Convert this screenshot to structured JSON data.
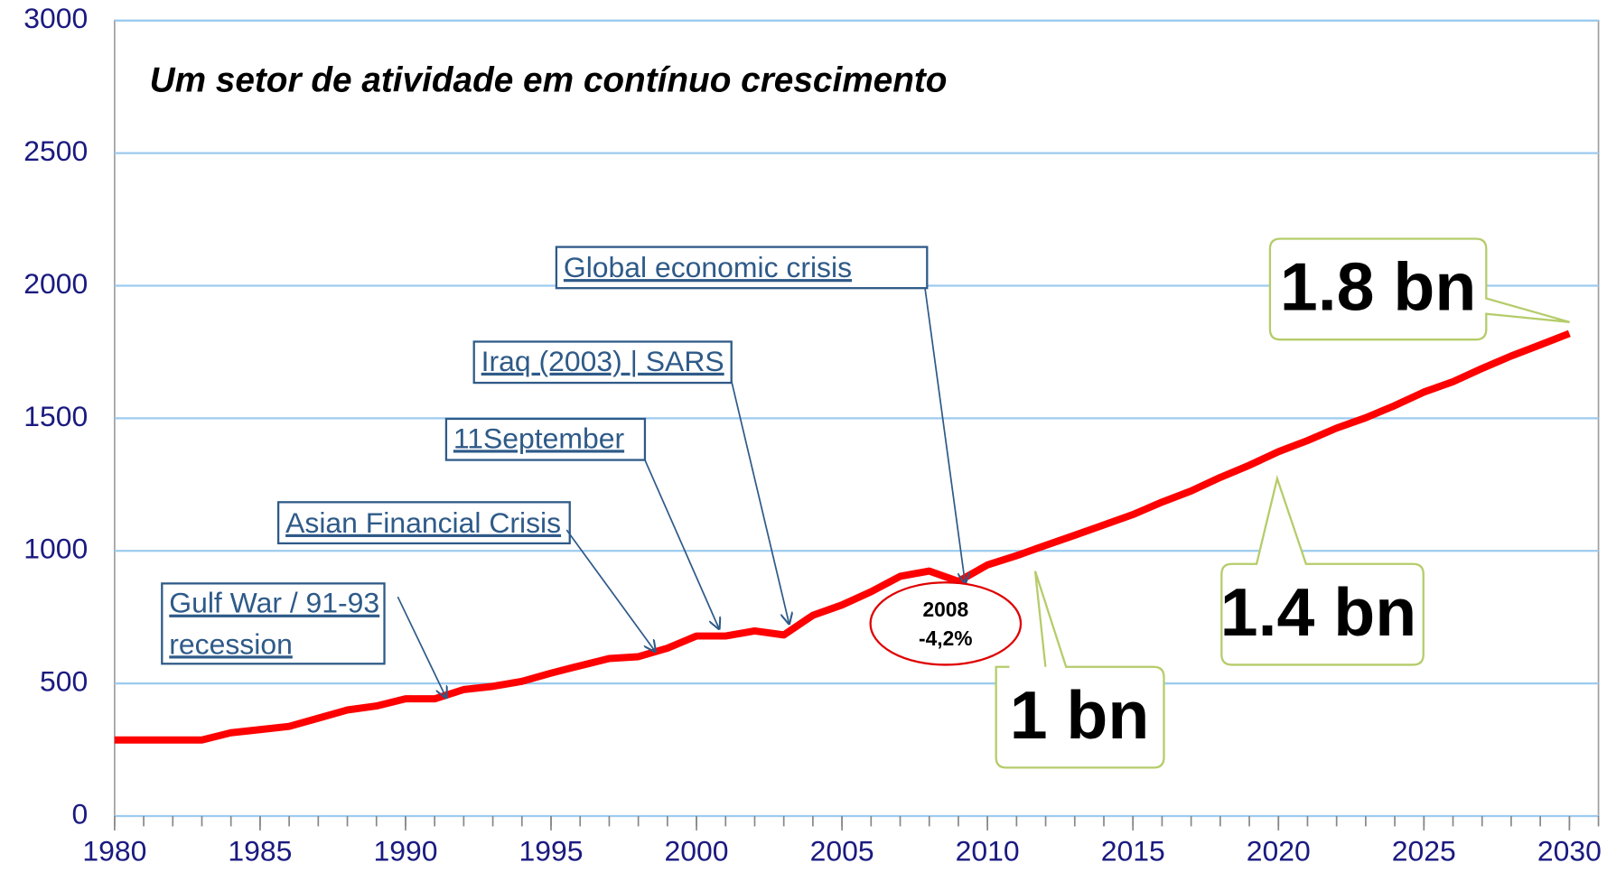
{
  "chart_data": {
    "type": "line",
    "title": "Um setor de atividade em contínuo crescimento",
    "x": [
      1980,
      1981,
      1982,
      1983,
      1984,
      1985,
      1986,
      1987,
      1988,
      1989,
      1990,
      1991,
      1992,
      1993,
      1994,
      1995,
      1996,
      1997,
      1998,
      1999,
      2000,
      2001,
      2002,
      2003,
      2004,
      2005,
      2006,
      2007,
      2008,
      2009,
      2010,
      2011,
      2012,
      2013,
      2014,
      2015,
      2016,
      2017,
      2018,
      2019,
      2020,
      2021,
      2022,
      2023,
      2024,
      2025,
      2026,
      2027,
      2028,
      2029,
      2030
    ],
    "series": [
      {
        "color": "#ff0000",
        "values": [
          287,
          287,
          287,
          287,
          314,
          326,
          338,
          369,
          400,
          415,
          442,
          442,
          477,
          489,
          508,
          539,
          567,
          594,
          601,
          633,
          679,
          679,
          698,
          683,
          757,
          796,
          846,
          904,
          924,
          885,
          947,
          982,
          1021,
          1059,
          1098,
          1137,
          1184,
          1226,
          1277,
          1323,
          1374,
          1416,
          1463,
          1502,
          1548,
          1599,
          1638,
          1688,
          1735,
          1777,
          1820
        ]
      }
    ],
    "xlim": [
      1980,
      2031
    ],
    "xticks": [
      1980,
      1985,
      1990,
      1995,
      2000,
      2005,
      2010,
      2015,
      2020,
      2025,
      2030
    ],
    "ylim": [
      0,
      3000
    ],
    "yticks": [
      0,
      500,
      1000,
      1500,
      2000,
      2500,
      3000
    ],
    "grid": true,
    "annotations": [
      {
        "lines": [
          "Gulf War / 91-93",
          "recession"
        ]
      },
      {
        "lines": [
          "Asian Financial Crisis"
        ]
      },
      {
        "lines": [
          "11September"
        ]
      },
      {
        "lines": [
          "Iraq (2003) | SARS"
        ]
      },
      {
        "lines": [
          "Global economic crisis"
        ]
      },
      {
        "lines": [
          "2008",
          "-4,2%"
        ]
      },
      {
        "lines": [
          "1 bn"
        ]
      },
      {
        "lines": [
          "1.4 bn"
        ]
      },
      {
        "lines": [
          "1.8 bn"
        ]
      }
    ]
  }
}
